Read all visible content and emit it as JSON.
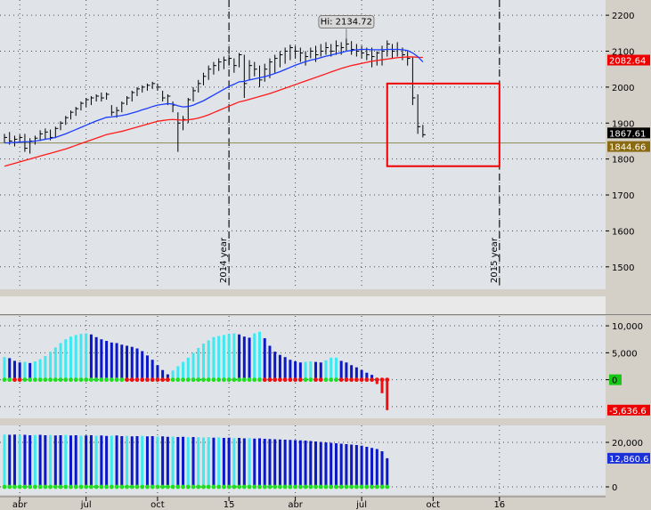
{
  "chart_data": [
    {
      "type": "ohlc",
      "panel": "price",
      "y_ticks": [
        1500,
        1600,
        1700,
        1800,
        1900,
        2000,
        2100,
        2200
      ],
      "ylim": [
        1450,
        2230
      ],
      "bars": [
        [
          1870,
          1845,
          1860
        ],
        [
          1875,
          1840,
          1850
        ],
        [
          1865,
          1835,
          1855
        ],
        [
          1868,
          1845,
          1860
        ],
        [
          1870,
          1820,
          1830
        ],
        [
          1858,
          1815,
          1850
        ],
        [
          1865,
          1840,
          1858
        ],
        [
          1880,
          1850,
          1870
        ],
        [
          1885,
          1855,
          1875
        ],
        [
          1882,
          1852,
          1860
        ],
        [
          1890,
          1858,
          1885
        ],
        [
          1905,
          1880,
          1900
        ],
        [
          1920,
          1895,
          1915
        ],
        [
          1935,
          1910,
          1930
        ],
        [
          1945,
          1920,
          1940
        ],
        [
          1960,
          1935,
          1955
        ],
        [
          1970,
          1945,
          1965
        ],
        [
          1975,
          1950,
          1970
        ],
        [
          1980,
          1960,
          1975
        ],
        [
          1985,
          1960,
          1970
        ],
        [
          1985,
          1965,
          1980
        ],
        [
          1950,
          1920,
          1930
        ],
        [
          1945,
          1915,
          1935
        ],
        [
          1960,
          1930,
          1955
        ],
        [
          1975,
          1950,
          1970
        ],
        [
          1990,
          1960,
          1985
        ],
        [
          2000,
          1975,
          1995
        ],
        [
          2005,
          1985,
          2000
        ],
        [
          2010,
          1990,
          2005
        ],
        [
          2015,
          1995,
          2010
        ],
        [
          2010,
          1990,
          2000
        ],
        [
          1990,
          1960,
          1970
        ],
        [
          1980,
          1950,
          1975
        ],
        [
          1960,
          1930,
          1950
        ],
        [
          1930,
          1820,
          1900
        ],
        [
          1920,
          1880,
          1910
        ],
        [
          1970,
          1900,
          1965
        ],
        [
          2000,
          1960,
          1990
        ],
        [
          2020,
          1985,
          2010
        ],
        [
          2040,
          2005,
          2030
        ],
        [
          2060,
          2020,
          2050
        ],
        [
          2070,
          2035,
          2060
        ],
        [
          2080,
          2045,
          2070
        ],
        [
          2085,
          2050,
          2075
        ],
        [
          2090,
          2060,
          2080
        ],
        [
          2080,
          2040,
          2060
        ],
        [
          2095,
          2055,
          2090
        ],
        [
          2090,
          1970,
          2010
        ],
        [
          2075,
          2020,
          2060
        ],
        [
          2070,
          2030,
          2050
        ],
        [
          2060,
          2000,
          2020
        ],
        [
          2065,
          2015,
          2050
        ],
        [
          2080,
          2025,
          2070
        ],
        [
          2090,
          2040,
          2080
        ],
        [
          2100,
          2055,
          2090
        ],
        [
          2110,
          2065,
          2100
        ],
        [
          2118,
          2075,
          2110
        ],
        [
          2115,
          2080,
          2100
        ],
        [
          2110,
          2070,
          2095
        ],
        [
          2100,
          2060,
          2085
        ],
        [
          2110,
          2080,
          2100
        ],
        [
          2115,
          2070,
          2090
        ],
        [
          2120,
          2085,
          2100
        ],
        [
          2125,
          2090,
          2110
        ],
        [
          2120,
          2085,
          2100
        ],
        [
          2130,
          2090,
          2115
        ],
        [
          2125,
          2090,
          2110
        ],
        [
          2134.72,
          2100,
          2120
        ],
        [
          2128,
          2090,
          2105
        ],
        [
          2120,
          2085,
          2100
        ],
        [
          2115,
          2080,
          2095
        ],
        [
          2110,
          2075,
          2090
        ],
        [
          2110,
          2055,
          2085
        ],
        [
          2100,
          2060,
          2095
        ],
        [
          2115,
          2060,
          2100
        ],
        [
          2130,
          2085,
          2120
        ],
        [
          2120,
          2080,
          2100
        ],
        [
          2125,
          2085,
          2105
        ],
        [
          2110,
          2075,
          2090
        ],
        [
          2100,
          2060,
          2080
        ],
        [
          2085,
          1950,
          1970
        ],
        [
          1980,
          1870,
          1890
        ],
        [
          1895,
          1860,
          1867.61
        ]
      ],
      "ma_blue": [
        1845,
        1845,
        1846,
        1847,
        1848,
        1848,
        1850,
        1852,
        1855,
        1857,
        1860,
        1865,
        1870,
        1876,
        1882,
        1888,
        1894,
        1900,
        1906,
        1911,
        1916,
        1917,
        1919,
        1921,
        1924,
        1928,
        1932,
        1937,
        1941,
        1946,
        1950,
        1952,
        1954,
        1953,
        1948,
        1945,
        1946,
        1950,
        1956,
        1962,
        1970,
        1978,
        1986,
        1994,
        2002,
        2008,
        2015,
        2016,
        2020,
        2023,
        2026,
        2029,
        2033,
        2038,
        2043,
        2049,
        2055,
        2061,
        2066,
        2071,
        2075,
        2078,
        2082,
        2086,
        2089,
        2093,
        2096,
        2100,
        2102,
        2104,
        2105,
        2105,
        2104,
        2104,
        2104,
        2105,
        2105,
        2105,
        2104,
        2102,
        2095,
        2085,
        2070
      ],
      "ma_red": [
        1780,
        1784,
        1788,
        1792,
        1796,
        1800,
        1804,
        1808,
        1812,
        1816,
        1820,
        1824,
        1828,
        1833,
        1838,
        1843,
        1848,
        1853,
        1858,
        1863,
        1868,
        1871,
        1874,
        1877,
        1881,
        1885,
        1889,
        1893,
        1897,
        1901,
        1905,
        1907,
        1909,
        1910,
        1909,
        1908,
        1909,
        1911,
        1914,
        1918,
        1923,
        1929,
        1935,
        1941,
        1947,
        1953,
        1959,
        1962,
        1966,
        1970,
        1974,
        1978,
        1982,
        1987,
        1992,
        1997,
        2002,
        2007,
        2012,
        2017,
        2022,
        2027,
        2032,
        2037,
        2042,
        2047,
        2052,
        2056,
        2060,
        2063,
        2066,
        2069,
        2072,
        2074,
        2076,
        2078,
        2080,
        2082,
        2083,
        2084,
        2084,
        2083,
        2082.64
      ],
      "hi_label": "Hi: 2134.72",
      "last_label": "1867.61",
      "ma_label": "2082.64",
      "hline_label": "1844.66",
      "hline_value": 1844.66,
      "vlines": [
        {
          "label": "2014 year",
          "bar": 44
        },
        {
          "label": "2015 year",
          "bar": 97
        }
      ],
      "highlight_box": {
        "bar_from": 75,
        "bar_to": 97,
        "y_top": 2010,
        "y_bottom": 1780
      }
    },
    {
      "type": "bar",
      "panel": "oscillator",
      "y_ticks_labels": [
        "10,000",
        "5,000",
        "0"
      ],
      "y_ticks": [
        10000,
        5000,
        0
      ],
      "ylim": [
        -6500,
        11000
      ],
      "values": [
        4200,
        4000,
        3500,
        3200,
        3300,
        3100,
        3400,
        3800,
        4400,
        5200,
        6000,
        6800,
        7500,
        8000,
        8300,
        8500,
        8600,
        8400,
        7900,
        7500,
        7200,
        6900,
        6800,
        6500,
        6300,
        6100,
        5800,
        5300,
        4500,
        3700,
        2700,
        1800,
        1000,
        1700,
        2500,
        3300,
        4100,
        5000,
        5900,
        6700,
        7300,
        7900,
        8100,
        8300,
        8500,
        8600,
        8400,
        8000,
        7800,
        8600,
        8900,
        7700,
        6300,
        5200,
        4600,
        4200,
        3700,
        3400,
        3200,
        3300,
        3400,
        3300,
        3200,
        3600,
        4100,
        4100,
        3500,
        3200,
        2700,
        2300,
        1800,
        1300,
        900,
        -800,
        -2500,
        -5636.6
      ],
      "value_label": "-5,636.6",
      "zero_label": "0"
    },
    {
      "type": "bar",
      "panel": "volume",
      "y_ticks_labels": [
        "20,000",
        "0"
      ],
      "y_ticks": [
        20000,
        0
      ],
      "ylim": [
        -2000,
        26000
      ],
      "values": [
        23500,
        23400,
        23500,
        23300,
        23400,
        23200,
        23300,
        23400,
        23200,
        23300,
        23100,
        23200,
        23300,
        23100,
        23200,
        23000,
        23100,
        23200,
        23000,
        23100,
        22900,
        23000,
        23100,
        22800,
        22900,
        22700,
        22800,
        22900,
        22700,
        22800,
        22600,
        22700,
        22500,
        22600,
        22400,
        22500,
        22300,
        22400,
        22300,
        22200,
        22300,
        22100,
        22200,
        22000,
        22100,
        21900,
        22000,
        21800,
        21900,
        21700,
        21800,
        21600,
        21500,
        21400,
        21300,
        21200,
        21100,
        21000,
        20900,
        20800,
        20600,
        20400,
        20200,
        20000,
        19800,
        19600,
        19400,
        19200,
        19000,
        18800,
        18500,
        18000,
        17500,
        17000,
        16000,
        12860.6
      ],
      "value_label": "12,860.6"
    }
  ],
  "x_axis": {
    "labels": [
      {
        "text": "abr",
        "bar": 3
      },
      {
        "text": "jul",
        "bar": 16
      },
      {
        "text": "oct",
        "bar": 30
      },
      {
        "text": "15",
        "bar": 44
      },
      {
        "text": "abr",
        "bar": 57
      },
      {
        "text": "jul",
        "bar": 70
      },
      {
        "text": "oct",
        "bar": 84
      },
      {
        "text": "16",
        "bar": 97
      }
    ]
  },
  "colors": {
    "panel_bg": "#e0e4e8",
    "frame_bg": "#d4d0c8",
    "grid": "#4a4a4a",
    "bar": "#000000",
    "ma_blue": "#1a3cff",
    "ma_red": "#ff1a1a",
    "hline": "#8a8a50",
    "cyan": "#40e8f0",
    "navy": "#0a18c8",
    "green_dot": "#1ee01e",
    "red_dot": "#ee1010",
    "box": "#ee0000",
    "label_black": "#000000",
    "label_red": "#ee0000",
    "label_brown": "#8a6a10",
    "label_green": "#18c818",
    "label_blue": "#1a30d8"
  }
}
